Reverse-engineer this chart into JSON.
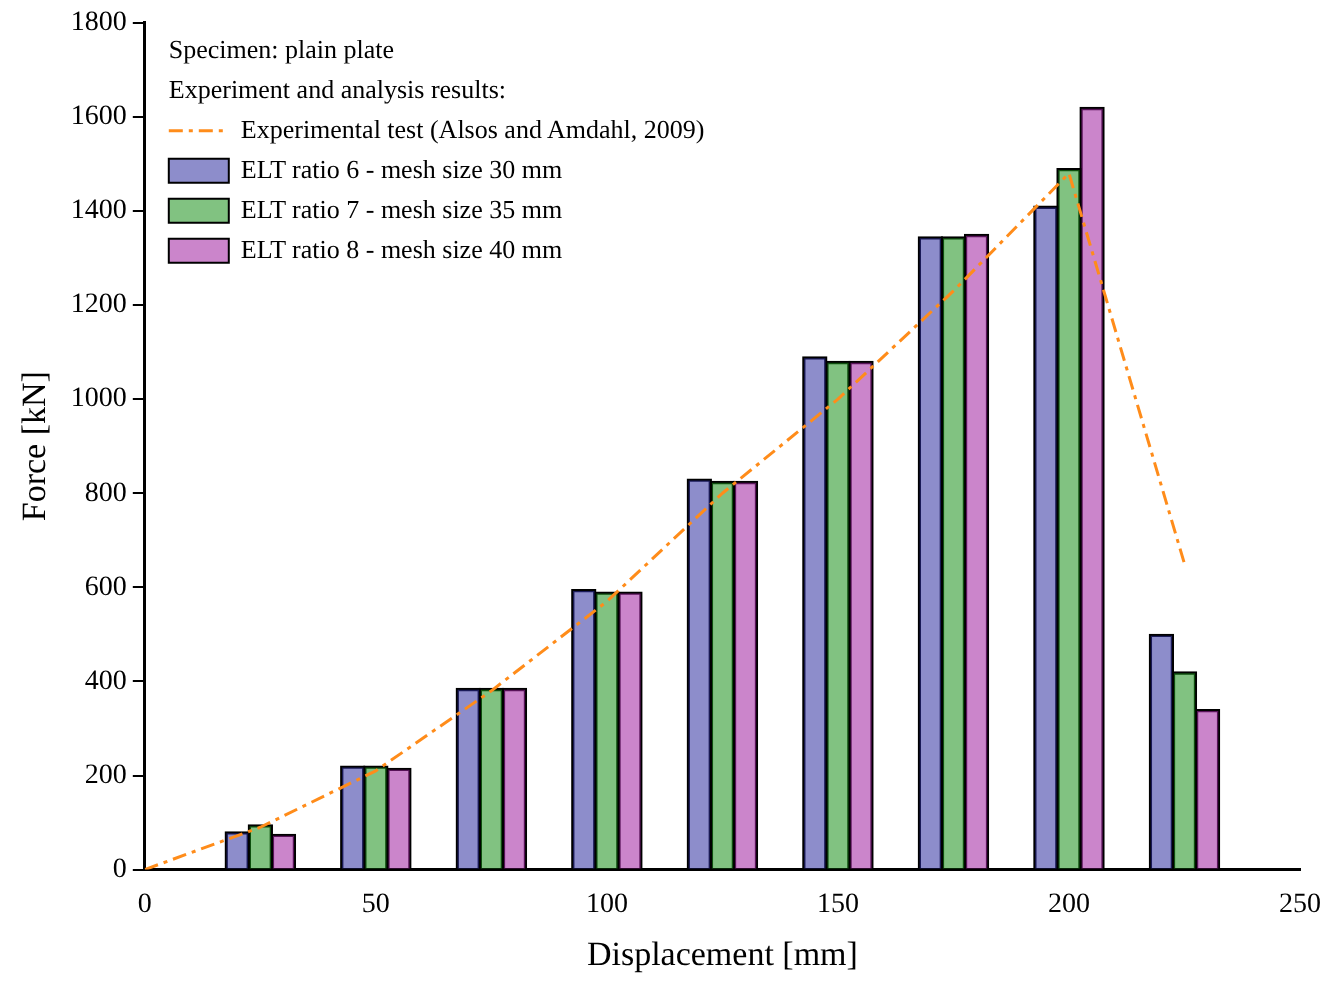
{
  "chart_data": {
    "type": "bar",
    "xlabel": "Displacement [mm]",
    "ylabel": "Force [kN]",
    "legend_title": "Experiment and analysis results:",
    "annotations": [
      "Specimen: plain plate"
    ],
    "xlim": [
      0,
      250
    ],
    "xticks": [
      0,
      50,
      100,
      150,
      200,
      250
    ],
    "ylim": [
      0,
      1800
    ],
    "yticks": [
      0,
      200,
      400,
      600,
      800,
      1000,
      1200,
      1400,
      1600,
      1800
    ],
    "grid": false,
    "legend": "top left",
    "series": [
      {
        "name": "Experimental test (Alsos and Amdahl, 2009)",
        "type": "line",
        "line_style": "dashed",
        "marker": "none",
        "color": "#ff8c1a",
        "x": [
          0,
          25,
          50,
          75,
          100,
          125,
          150,
          175,
          200,
          225
        ],
        "values": [
          0,
          90,
          210,
          380,
          570,
          800,
          1000,
          1230,
          1480,
          650
        ]
      },
      {
        "name": "ELT ratio 6 - mesh size 30 mm",
        "color": "#3030a0",
        "x": [
          20,
          45,
          70,
          95,
          120,
          145,
          170,
          195,
          220
        ],
        "values": [
          80,
          220,
          385,
          595,
          830,
          1090,
          1345,
          1410,
          500
        ]
      },
      {
        "name": "ELT ratio 7 - mesh size 35 mm",
        "color": "#1a8f1a",
        "x": [
          25,
          50,
          75,
          100,
          125,
          150,
          175,
          200,
          225
        ],
        "values": [
          95,
          220,
          385,
          590,
          825,
          1080,
          1345,
          1490,
          420
        ]
      },
      {
        "name": "ELT ratio 8 - mesh size 40 mm",
        "color": "#a020a0",
        "x": [
          30,
          55,
          80,
          105,
          130,
          155,
          180,
          205,
          230
        ],
        "values": [
          75,
          215,
          385,
          590,
          825,
          1080,
          1350,
          1620,
          340
        ]
      }
    ]
  }
}
